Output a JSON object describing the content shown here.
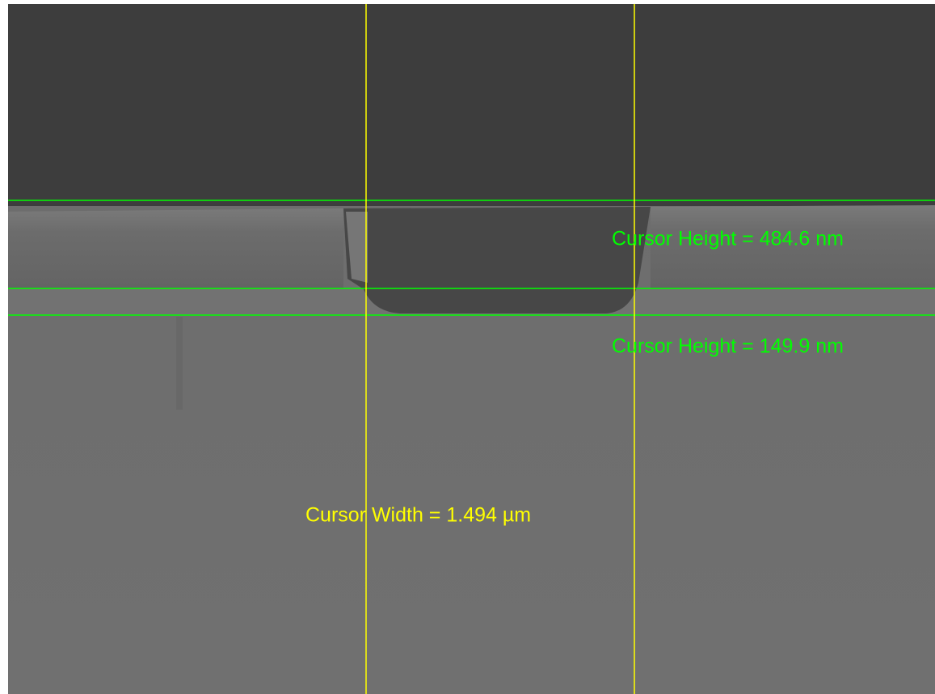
{
  "annotations": {
    "height_1": "Cursor Height = 484.6 nm",
    "height_2": "Cursor Height = 149.9 nm",
    "width": "Cursor Width = 1.494 µm"
  }
}
